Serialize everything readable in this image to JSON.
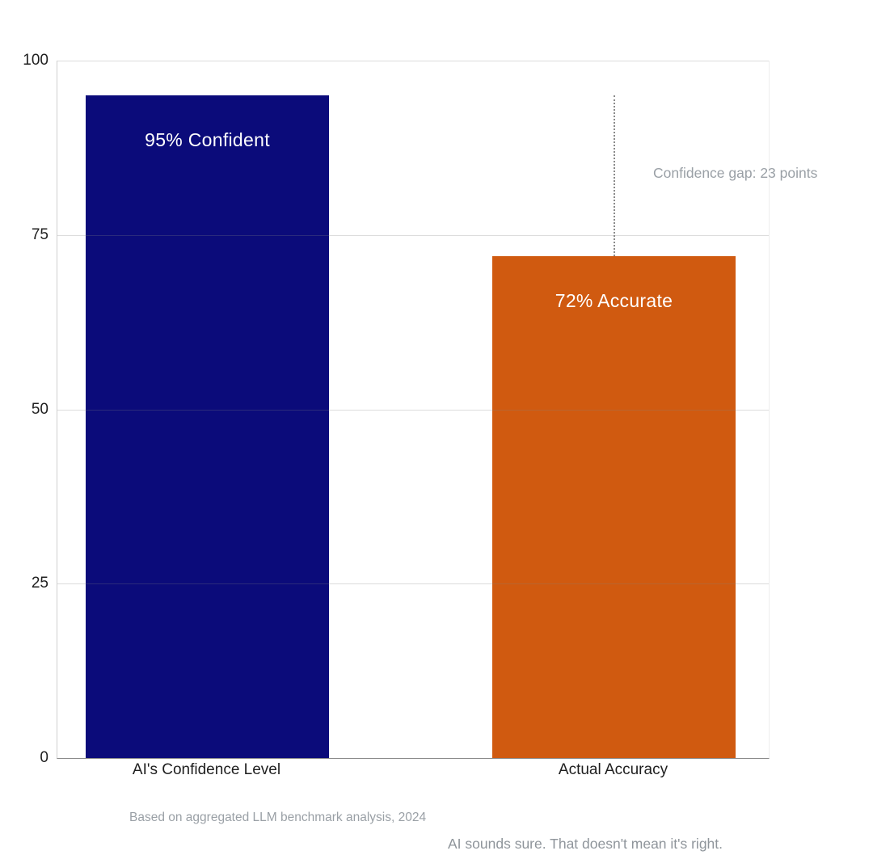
{
  "chart_data": {
    "type": "bar",
    "categories": [
      "AI's Confidence Level",
      "Actual Accuracy"
    ],
    "values": [
      95,
      72
    ],
    "bar_labels": [
      "95% Confident",
      "72% Accurate"
    ],
    "bar_colors": [
      "#0b0b7a",
      "#d05a10"
    ],
    "title": "",
    "xlabel": "",
    "ylabel": "",
    "ylim": [
      0,
      100
    ],
    "yticks": [
      0,
      25,
      50,
      75,
      100
    ],
    "grid": true,
    "legend": false,
    "annotation": "Confidence gap: 23 points",
    "source_note": "Based on aggregated LLM benchmark analysis, 2024",
    "caption": "AI sounds sure. That doesn't mean it's right."
  },
  "colors": {
    "background": "#ffffff",
    "axis_text": "#1f1f1f",
    "muted_text": "#9aa0a6",
    "gap_line": "#8a8a8a"
  }
}
